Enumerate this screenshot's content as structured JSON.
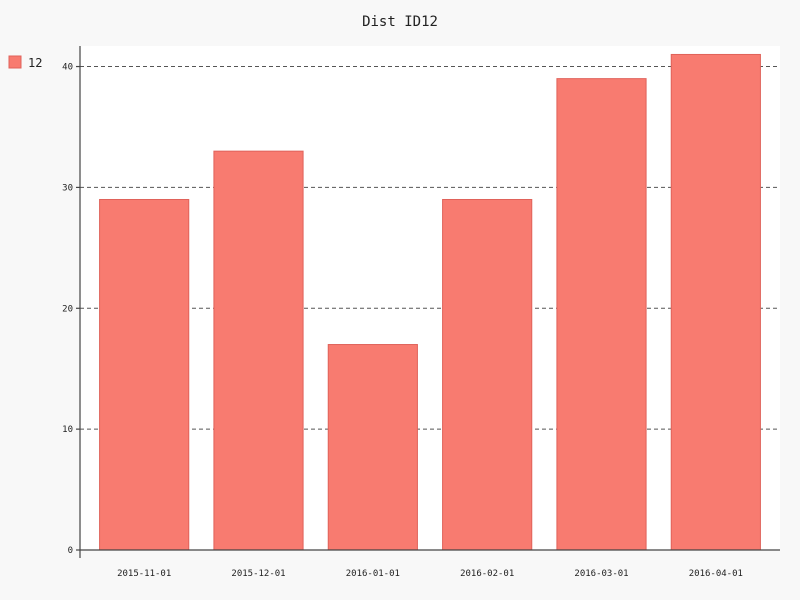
{
  "chart_data": {
    "type": "bar",
    "title": "Dist ID12",
    "xlabel": "",
    "ylabel": "",
    "categories": [
      "2015-11-01",
      "2015-12-01",
      "2016-01-01",
      "2016-02-01",
      "2016-03-01",
      "2016-04-01"
    ],
    "series": [
      {
        "name": "12",
        "values": [
          29,
          33,
          17,
          29,
          39,
          41
        ],
        "color": "#f87b70"
      }
    ],
    "ylim": [
      0,
      41.7
    ],
    "yticks": [
      0,
      10,
      20,
      30,
      40
    ],
    "grid": true,
    "legend": "top-left"
  }
}
